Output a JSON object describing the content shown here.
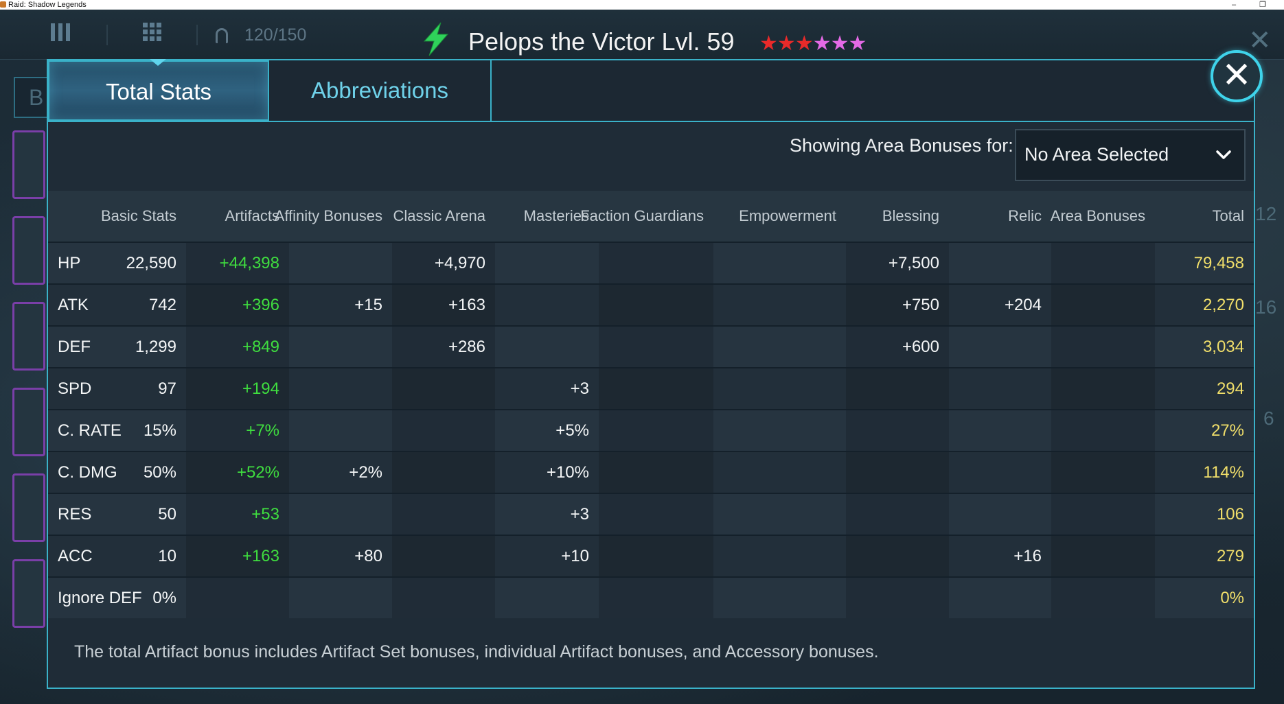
{
  "window": {
    "title": "Raid: Shadow Legends"
  },
  "topbar": {
    "roster_count": "120/150",
    "hero_title": "Pelops the Victor Lvl. 59",
    "stars": {
      "total": 6,
      "red": 3,
      "pink": 3
    }
  },
  "tabs": [
    {
      "label": "Total Stats",
      "active": true
    },
    {
      "label": "Abbreviations",
      "active": false
    }
  ],
  "filter": {
    "label": "Showing Area Bonuses for:",
    "selected": "No Area Selected"
  },
  "table": {
    "columns": [
      "Basic Stats",
      "Artifacts",
      "Affinity Bonuses",
      "Classic Arena",
      "Masteries",
      "Faction Guardians",
      "Empowerment",
      "Blessing",
      "Relic",
      "Area Bonuses",
      "Total"
    ],
    "rows": [
      {
        "stat": "HP",
        "basic": "22,590",
        "artifacts": "+44,398",
        "affinity": "",
        "arena": "+4,970",
        "masteries": "",
        "faction": "",
        "empowerment": "",
        "blessing": "+7,500",
        "relic": "",
        "area": "",
        "total": "79,458"
      },
      {
        "stat": "ATK",
        "basic": "742",
        "artifacts": "+396",
        "affinity": "+15",
        "arena": "+163",
        "masteries": "",
        "faction": "",
        "empowerment": "",
        "blessing": "+750",
        "relic": "+204",
        "area": "",
        "total": "2,270"
      },
      {
        "stat": "DEF",
        "basic": "1,299",
        "artifacts": "+849",
        "affinity": "",
        "arena": "+286",
        "masteries": "",
        "faction": "",
        "empowerment": "",
        "blessing": "+600",
        "relic": "",
        "area": "",
        "total": "3,034"
      },
      {
        "stat": "SPD",
        "basic": "97",
        "artifacts": "+194",
        "affinity": "",
        "arena": "",
        "masteries": "+3",
        "faction": "",
        "empowerment": "",
        "blessing": "",
        "relic": "",
        "area": "",
        "total": "294"
      },
      {
        "stat": "C. RATE",
        "basic": "15%",
        "artifacts": "+7%",
        "affinity": "",
        "arena": "",
        "masteries": "+5%",
        "faction": "",
        "empowerment": "",
        "blessing": "",
        "relic": "",
        "area": "",
        "total": "27%"
      },
      {
        "stat": "C. DMG",
        "basic": "50%",
        "artifacts": "+52%",
        "affinity": "+2%",
        "arena": "",
        "masteries": "+10%",
        "faction": "",
        "empowerment": "",
        "blessing": "",
        "relic": "",
        "area": "",
        "total": "114%"
      },
      {
        "stat": "RES",
        "basic": "50",
        "artifacts": "+53",
        "affinity": "",
        "arena": "",
        "masteries": "+3",
        "faction": "",
        "empowerment": "",
        "blessing": "",
        "relic": "",
        "area": "",
        "total": "106"
      },
      {
        "stat": "ACC",
        "basic": "10",
        "artifacts": "+163",
        "affinity": "+80",
        "arena": "",
        "masteries": "+10",
        "faction": "",
        "empowerment": "",
        "blessing": "",
        "relic": "+16",
        "area": "",
        "total": "279"
      },
      {
        "stat": "Ignore DEF",
        "basic": "0%",
        "artifacts": "",
        "affinity": "",
        "arena": "",
        "masteries": "",
        "faction": "",
        "empowerment": "",
        "blessing": "",
        "relic": "",
        "area": "",
        "total": "0%"
      }
    ]
  },
  "footer_note": "The total Artifact bonus includes Artifact Set bonuses, individual Artifact bonuses, and Accessory bonuses.",
  "side": {
    "right_numbers": [
      "12",
      "16",
      "6"
    ],
    "left_tab_letter": "B"
  },
  "icons": {
    "lightning": "lightning-icon",
    "close": "close-icon",
    "dropdown": "chevron-down-icon",
    "roster": "helmet-icon",
    "menu": "menu-bars-icon",
    "grid": "grid-icon"
  },
  "colors": {
    "accent": "#3ab2c9",
    "artifact_green": "#3fde3f",
    "total_yellow": "#f1df6a",
    "star_red": "#ea2a2a",
    "star_pink": "#e46ae6",
    "bolt_green": "#2fd25a"
  }
}
